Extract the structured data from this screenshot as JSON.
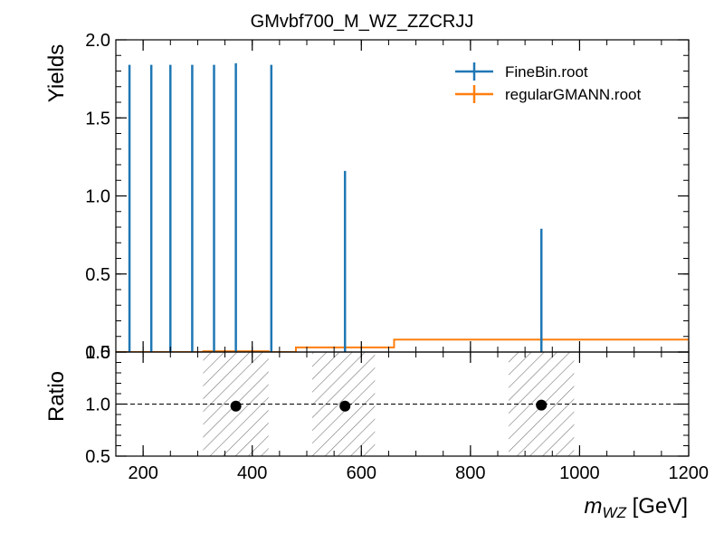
{
  "chart_data": [
    {
      "type": "line",
      "panel": "main",
      "title": "GMvbf700_M_WZ_ZZCRJJ",
      "ylabel": "Yields",
      "xlim": [
        150,
        1200
      ],
      "ylim": [
        0.0,
        2.0
      ],
      "y_ticks": [
        0.0,
        0.5,
        1.0,
        1.5,
        2.0
      ],
      "y_tick_labels": [
        "0.0",
        "0.5",
        "1.0",
        "1.5",
        "2.0"
      ],
      "legend_position": "top-right",
      "series": [
        {
          "name": "FineBin.root",
          "color": "#1f77b4",
          "style": "errorbar",
          "x": [
            175,
            215,
            250,
            290,
            330,
            370,
            435,
            570,
            930
          ],
          "y": [
            0.0,
            0.0,
            0.0,
            0.0,
            0.0,
            0.0,
            0.0,
            0.0,
            0.0
          ],
          "yerr_up": [
            1.84,
            1.84,
            1.84,
            1.84,
            1.84,
            1.85,
            1.84,
            1.16,
            0.79
          ]
        },
        {
          "name": "regularGMANN.root",
          "color": "#ff7f0e",
          "style": "step",
          "bin_edges": [
            150,
            310,
            430,
            480,
            660,
            1200
          ],
          "values": [
            0.0,
            0.005,
            0.0,
            0.03,
            0.08
          ],
          "errbar_x": [
            370,
            570,
            930
          ],
          "errbar_y": [
            0.005,
            0.03,
            0.08
          ],
          "errbar_err": [
            0.006,
            0.025,
            0.03
          ]
        }
      ]
    },
    {
      "type": "scatter",
      "panel": "ratio",
      "ylabel": "Ratio",
      "xlabel_math": "m",
      "xlabel_sub": "WZ",
      "xlabel_unit": " [GeV]",
      "xlim": [
        150,
        1200
      ],
      "ylim": [
        0.5,
        1.5
      ],
      "y_ticks": [
        0.5,
        1.0,
        1.5
      ],
      "y_tick_labels": [
        "0.5",
        "1.0",
        "1.5"
      ],
      "x_ticks": [
        200,
        400,
        600,
        800,
        1000,
        1200
      ],
      "x_tick_labels": [
        "200",
        "400",
        "600",
        "800",
        "1000",
        "1200"
      ],
      "reference_line": 1.0,
      "uncertainty_bands": [
        [
          310,
          430
        ],
        [
          510,
          625
        ],
        [
          870,
          990
        ]
      ],
      "points": {
        "x": [
          370,
          570,
          930
        ],
        "y": [
          0.98,
          0.98,
          0.99
        ]
      }
    }
  ]
}
